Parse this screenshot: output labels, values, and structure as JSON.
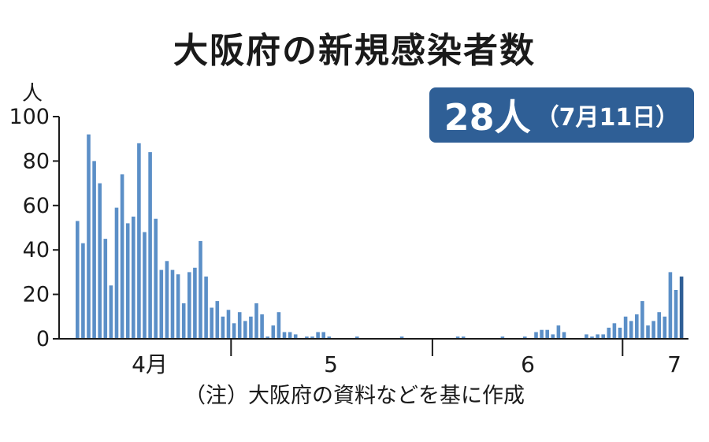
{
  "title": "大阪府の新規感染者数",
  "y_unit": "人",
  "badge": {
    "value": "28人",
    "date": "（7月11日）",
    "color": "#2f5f96"
  },
  "note": "（注）大阪府の資料などを基に作成",
  "colors": {
    "bar": "#5b8fc7",
    "highlight": "#2f5f96",
    "axis": "#1a1a1a"
  },
  "chart_data": {
    "type": "bar",
    "title": "大阪府の新規感染者数",
    "ylabel": "人",
    "ylim": [
      0,
      100
    ],
    "yticks": [
      0,
      20,
      40,
      60,
      80,
      100
    ],
    "x_labels": [
      "4月",
      "5",
      "6",
      "7"
    ],
    "values": [
      53,
      43,
      92,
      80,
      70,
      45,
      24,
      59,
      74,
      52,
      55,
      88,
      48,
      84,
      54,
      31,
      35,
      31,
      29,
      16,
      30,
      32,
      44,
      28,
      14,
      17,
      10,
      13,
      7,
      12,
      8,
      10,
      16,
      11,
      1,
      6,
      12,
      3,
      3,
      2,
      0,
      1,
      1,
      3,
      3,
      1,
      0,
      0,
      0,
      0,
      1,
      0,
      0,
      0,
      0,
      0,
      0,
      0,
      1,
      0,
      0,
      0,
      0,
      0,
      0,
      0,
      0,
      0,
      1,
      1,
      0,
      0,
      0,
      0,
      0,
      0,
      1,
      0,
      0,
      0,
      1,
      0,
      3,
      4,
      4,
      2,
      6,
      3,
      0,
      0,
      0,
      2,
      1,
      2,
      2,
      5,
      7,
      5,
      10,
      8,
      11,
      17,
      6,
      8,
      12,
      10,
      30,
      22,
      28
    ],
    "highlight_last": true
  }
}
